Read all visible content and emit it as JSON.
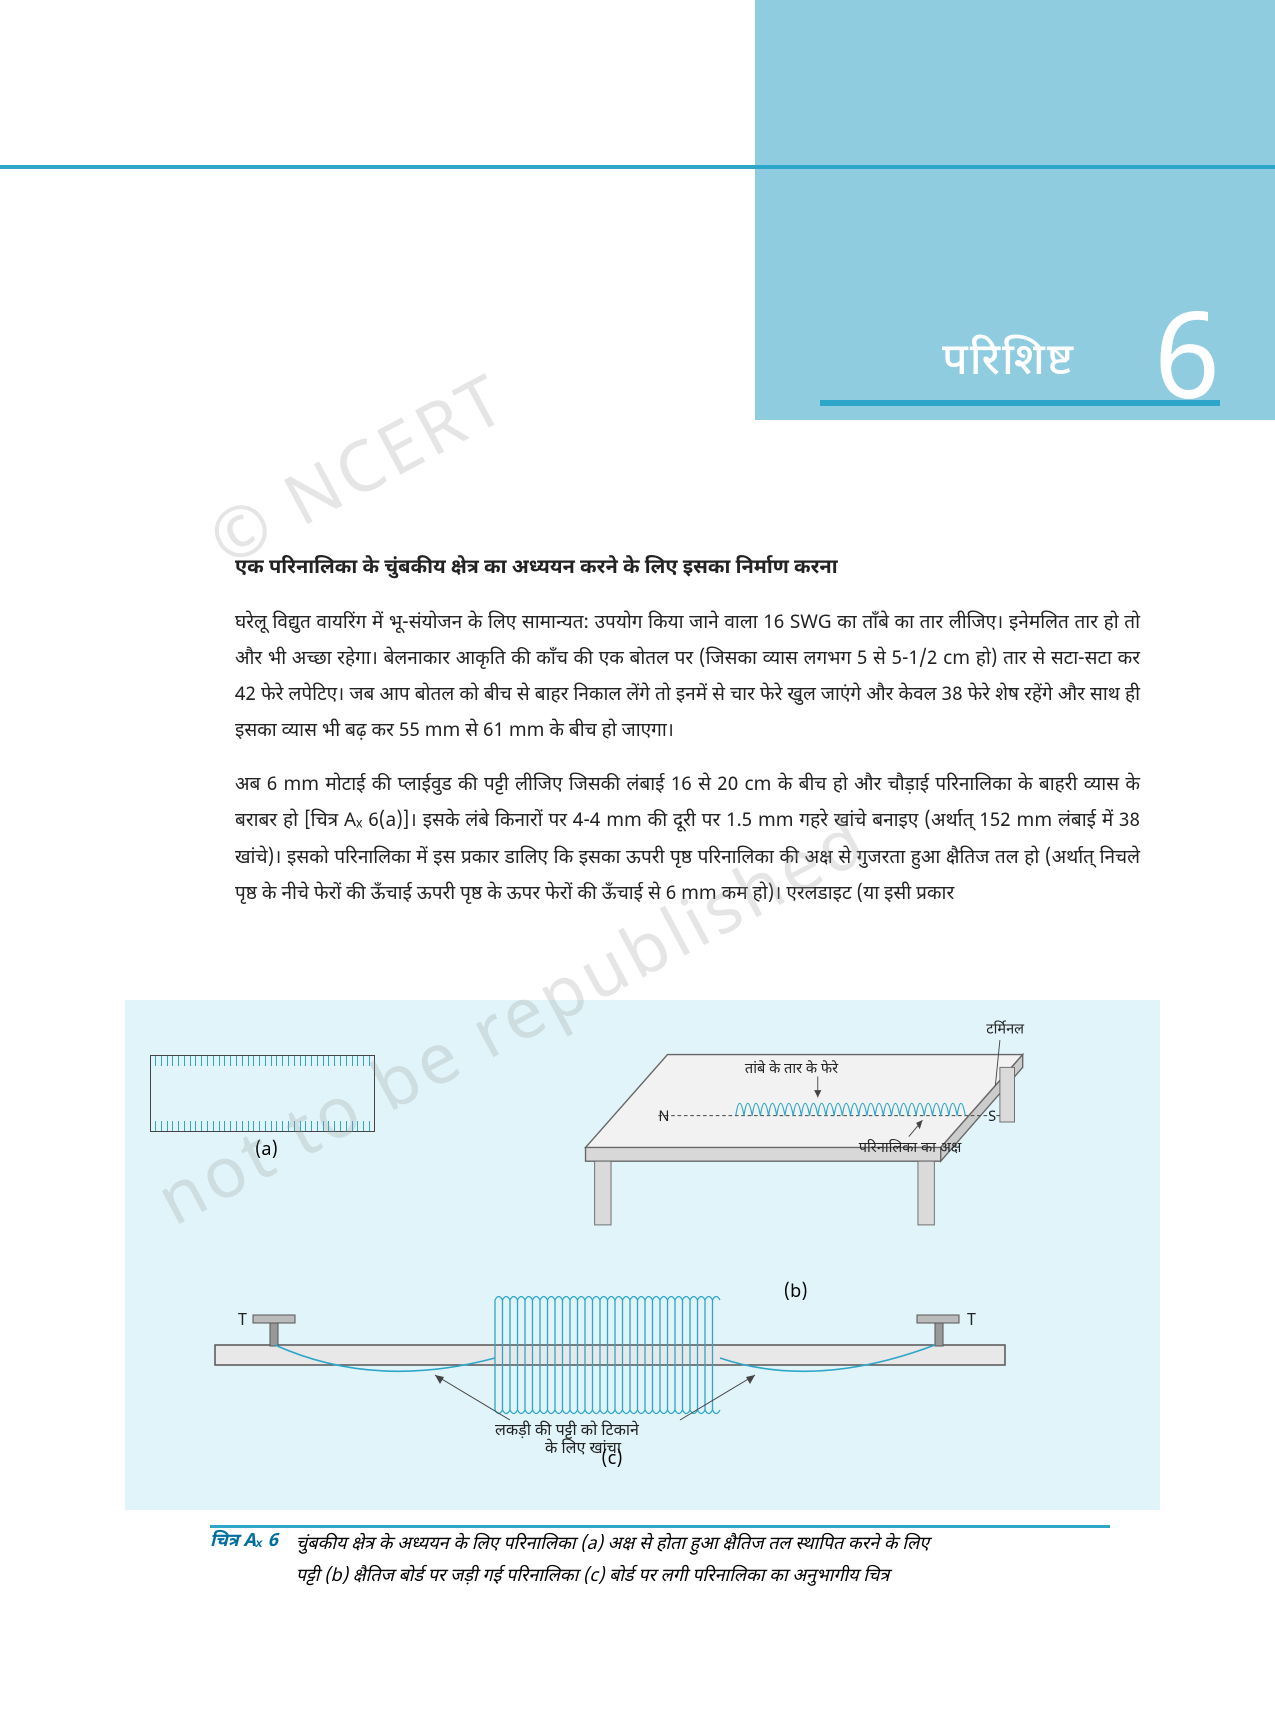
{
  "chapter": {
    "label": "परिशिष्ट",
    "number": "6"
  },
  "section_title": "एक परिनालिका के चुंबकीय क्षेत्र का अध्ययन करने के लिए इसका निर्माण करना",
  "para1": "घरेलू विद्युत वायरिंग में भू-संयोजन के लिए सामान्यत: उपयोग किया जाने वाला 16 SWG का ताँबे का तार लीजिए। इनेमलित तार हो तो और भी अच्छा रहेगा। बेलनाकार आकृति की काँच की एक बोतल पर (जिसका व्यास लगभग 5 से 5-1/2 cm हो) तार से सटा-सटा कर 42 फेरे लपेटिए। जब आप बोतल को बीच से बाहर निकाल लेंगे तो इनमें से चार फेरे खुल जाएंगे और केवल 38 फेरे शेष रहेंगे और साथ ही इसका व्यास भी बढ़ कर 55 mm से 61 mm के बीच हो जाएगा।",
  "para2": "अब 6 mm मोटाई की प्लाईवुड की पट्टी लीजिए जिसकी लंबाई 16 से 20 cm के बीच हो और चौड़ाई परिनालिका के बाहरी व्यास के बराबर हो [चित्र Aₓ 6(a)]। इसके लंबे किनारों पर 4-4 mm की दूरी पर 1.5 mm गहरे खांचे बनाइए (अर्थात् 152 mm लंबाई में 38 खांचे)। इसको परिनालिका में इस प्रकार डालिए कि इसका ऊपरी पृष्ठ परिनालिका की अक्ष से गुजरता हुआ क्षैतिज तल हो (अर्थात् निचले पृष्ठ के नीचे फेरों की ऊँचाई ऊपरी पृष्ठ के ऊपर फेरों की ऊँचाई से 6 mm कम हो)। एरलडाइट (या इसी प्रकार",
  "watermark1": "© NCERT",
  "watermark2": "not to be republished",
  "figure": {
    "a_label": "(a)",
    "b_label": "(b)",
    "c_label": "(c)",
    "terminal_label": "टर्मिनल",
    "copper_label": "तांबे के तार के फेरे",
    "axis_label": "परिनालिका का अक्ष",
    "n_label": "N",
    "s_label": "S",
    "t_label": "T",
    "slot_label1": "लकड़ी की पट्टी को टिकाने",
    "slot_label2": "के लिए खांचा",
    "colors": {
      "coil": "#2da6c9",
      "board": "#dedede",
      "line": "#444444"
    }
  },
  "caption": {
    "label": "चित्र Aₓ 6",
    "text1": "चुंबकीय क्षेत्र के अध्ययन के लिए परिनालिका (a) अक्ष से होता हुआ क्षैतिज तल स्थापित करने के लिए",
    "text2": "पट्टी (b) क्षैतिज बोर्ड पर जड़ी गई परिनालिका (c) बोर्ड पर लगी परिनालिका का अनुभागीय चित्र"
  }
}
